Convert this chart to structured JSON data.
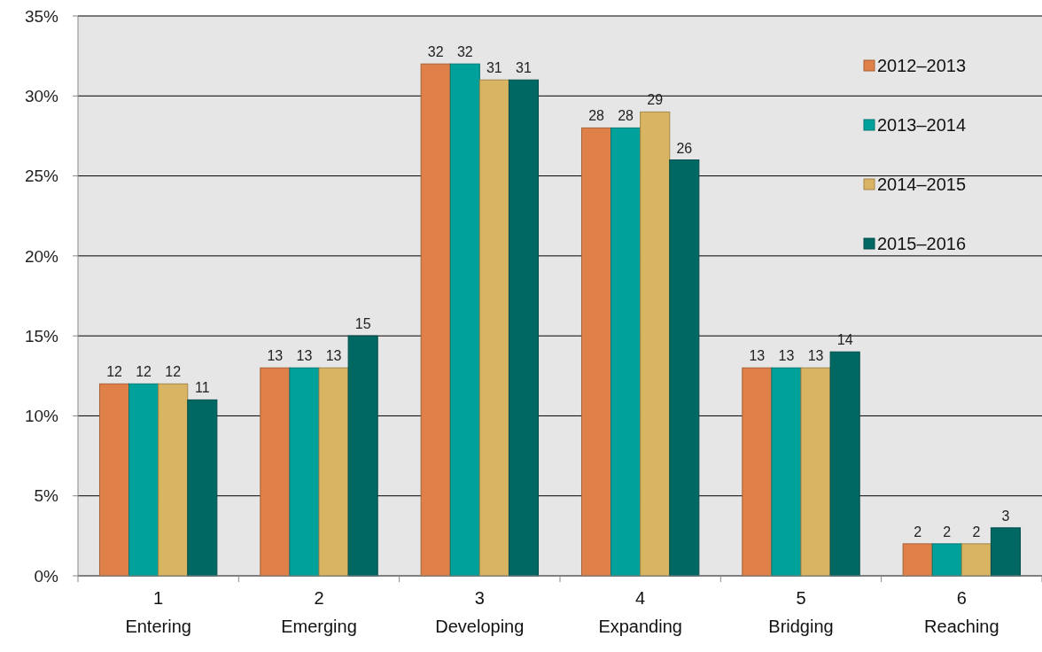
{
  "chart_data": {
    "type": "bar",
    "categories": [
      "1\nEntering",
      "2\nEmerging",
      "3\nDeveloping",
      "4\nExpanding",
      "5\nBridging",
      "6\nReaching"
    ],
    "series": [
      {
        "name": "2012–2013",
        "color": "#df8049",
        "values": [
          12,
          13,
          32,
          28,
          13,
          2
        ]
      },
      {
        "name": "2013–2014",
        "color": "#00a19b",
        "values": [
          12,
          13,
          32,
          28,
          13,
          2
        ]
      },
      {
        "name": "2014–2015",
        "color": "#d9b462",
        "values": [
          12,
          13,
          31,
          29,
          13,
          2
        ]
      },
      {
        "name": "2015–2016",
        "color": "#006863",
        "values": [
          11,
          15,
          31,
          26,
          14,
          3
        ]
      }
    ],
    "ylim": [
      0,
      35
    ],
    "yticks": [
      {
        "value": 0,
        "label": "0%"
      },
      {
        "value": 5,
        "label": "5%"
      },
      {
        "value": 10,
        "label": "10%"
      },
      {
        "value": 15,
        "label": "15%"
      },
      {
        "value": 20,
        "label": "20%"
      },
      {
        "value": 25,
        "label": "25%"
      },
      {
        "value": 30,
        "label": "30%"
      },
      {
        "value": 35,
        "label": "35%"
      }
    ],
    "grid": "y",
    "legend": "top right",
    "data_labels": true
  }
}
